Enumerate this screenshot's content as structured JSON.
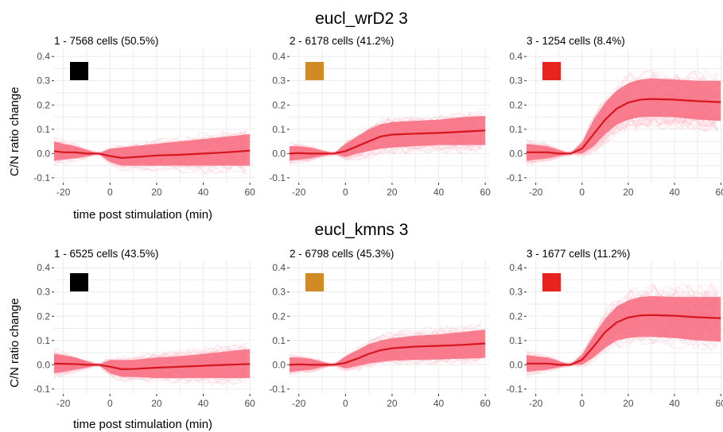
{
  "colors": {
    "line": "#d6161e",
    "band": "#f76a7d",
    "spaghetti": "#ffc6d2",
    "grid": "#ebebeb",
    "axis_text": "#4d4d4d"
  },
  "figure": {
    "titles": [
      "eucl_wrD2 3",
      "eucl_kmns 3"
    ],
    "xlabel": "time post stimulation (min)",
    "ylabel": "C/N ratio change"
  },
  "chart_data": [
    {
      "type": "line",
      "row": 0,
      "col": 0,
      "title": "1 - 7568 cells (50.5%)",
      "swatch": "#000000",
      "xlim": [
        -24,
        62
      ],
      "ylim": [
        -0.12,
        0.43
      ],
      "xticks": [
        -20,
        0,
        20,
        40,
        60
      ],
      "yticks": [
        -0.1,
        0.0,
        0.1,
        0.2,
        0.3,
        0.4
      ],
      "xlabel": "time post stimulation (min)",
      "ylabel": "C/N ratio change",
      "x": [
        -24,
        -20,
        -15,
        -10,
        -5,
        0,
        5,
        10,
        20,
        30,
        40,
        50,
        60
      ],
      "mean": [
        0.01,
        0.005,
        0.005,
        0.0,
        0.0,
        -0.01,
        -0.018,
        -0.015,
        -0.008,
        -0.005,
        0.0,
        0.005,
        0.012
      ],
      "lower": [
        -0.03,
        -0.025,
        -0.02,
        -0.012,
        0.0,
        -0.035,
        -0.05,
        -0.05,
        -0.05,
        -0.05,
        -0.05,
        -0.05,
        -0.05
      ],
      "upper": [
        0.05,
        0.04,
        0.03,
        0.015,
        0.0,
        0.02,
        0.025,
        0.03,
        0.04,
        0.05,
        0.06,
        0.07,
        0.08
      ]
    },
    {
      "type": "line",
      "row": 0,
      "col": 1,
      "title": "2 - 6178 cells (41.2%)",
      "swatch": "#d08a26",
      "xlim": [
        -24,
        62
      ],
      "ylim": [
        -0.12,
        0.43
      ],
      "xticks": [
        -20,
        0,
        20,
        40,
        60
      ],
      "yticks": [
        -0.1,
        0.0,
        0.1,
        0.2,
        0.3,
        0.4
      ],
      "xlabel": "",
      "ylabel": "",
      "x": [
        -24,
        -20,
        -15,
        -10,
        -5,
        0,
        5,
        10,
        15,
        20,
        30,
        40,
        50,
        60
      ],
      "mean": [
        0.0,
        0.002,
        0.0,
        0.0,
        0.0,
        0.01,
        0.03,
        0.05,
        0.07,
        0.078,
        0.082,
        0.085,
        0.09,
        0.095
      ],
      "lower": [
        -0.03,
        -0.025,
        -0.02,
        -0.01,
        0.0,
        -0.015,
        0.0,
        0.01,
        0.02,
        0.025,
        0.03,
        0.035,
        0.035,
        0.035
      ],
      "upper": [
        0.03,
        0.03,
        0.025,
        0.012,
        0.0,
        0.04,
        0.07,
        0.1,
        0.12,
        0.13,
        0.135,
        0.14,
        0.15,
        0.155
      ]
    },
    {
      "type": "line",
      "row": 0,
      "col": 2,
      "title": "3 - 1254 cells (8.4%)",
      "swatch": "#e8231f",
      "xlim": [
        -24,
        62
      ],
      "ylim": [
        -0.12,
        0.43
      ],
      "xticks": [
        -20,
        0,
        20,
        40,
        60
      ],
      "yticks": [
        -0.1,
        0.0,
        0.1,
        0.2,
        0.3,
        0.4
      ],
      "xlabel": "",
      "ylabel": "",
      "x": [
        -24,
        -20,
        -15,
        -10,
        -5,
        0,
        5,
        10,
        15,
        20,
        25,
        30,
        40,
        50,
        60
      ],
      "mean": [
        0.005,
        0.005,
        0.005,
        0.0,
        0.0,
        0.02,
        0.08,
        0.14,
        0.185,
        0.21,
        0.222,
        0.225,
        0.222,
        0.216,
        0.212
      ],
      "lower": [
        -0.03,
        -0.025,
        -0.02,
        -0.01,
        0.0,
        0.0,
        0.03,
        0.08,
        0.12,
        0.14,
        0.15,
        0.152,
        0.15,
        0.14,
        0.135
      ],
      "upper": [
        0.04,
        0.035,
        0.03,
        0.015,
        0.0,
        0.045,
        0.14,
        0.21,
        0.26,
        0.29,
        0.305,
        0.31,
        0.305,
        0.3,
        0.3
      ]
    },
    {
      "type": "line",
      "row": 1,
      "col": 0,
      "title": "1 - 6525 cells (43.5%)",
      "swatch": "#000000",
      "xlim": [
        -24,
        62
      ],
      "ylim": [
        -0.12,
        0.43
      ],
      "xticks": [
        -20,
        0,
        20,
        40,
        60
      ],
      "yticks": [
        -0.1,
        0.0,
        0.1,
        0.2,
        0.3,
        0.4
      ],
      "xlabel": "time post stimulation (min)",
      "ylabel": "C/N ratio change",
      "x": [
        -24,
        -20,
        -15,
        -10,
        -5,
        0,
        5,
        10,
        20,
        30,
        40,
        50,
        60
      ],
      "mean": [
        0.005,
        0.004,
        0.003,
        0.0,
        0.0,
        -0.008,
        -0.018,
        -0.017,
        -0.012,
        -0.008,
        -0.004,
        0.0,
        0.003
      ],
      "lower": [
        -0.035,
        -0.03,
        -0.02,
        -0.012,
        0.0,
        -0.035,
        -0.05,
        -0.05,
        -0.055,
        -0.055,
        -0.055,
        -0.055,
        -0.055
      ],
      "upper": [
        0.045,
        0.04,
        0.03,
        0.015,
        0.0,
        0.02,
        0.02,
        0.02,
        0.03,
        0.035,
        0.045,
        0.055,
        0.065
      ]
    },
    {
      "type": "line",
      "row": 1,
      "col": 1,
      "title": "2 - 6798 cells (45.3%)",
      "swatch": "#d08a26",
      "xlim": [
        -24,
        62
      ],
      "ylim": [
        -0.12,
        0.43
      ],
      "xticks": [
        -20,
        0,
        20,
        40,
        60
      ],
      "yticks": [
        -0.1,
        0.0,
        0.1,
        0.2,
        0.3,
        0.4
      ],
      "xlabel": "",
      "ylabel": "",
      "x": [
        -24,
        -20,
        -15,
        -10,
        -5,
        0,
        5,
        10,
        15,
        20,
        30,
        40,
        50,
        60
      ],
      "mean": [
        0.0,
        0.002,
        0.0,
        0.0,
        0.0,
        0.008,
        0.025,
        0.045,
        0.06,
        0.068,
        0.075,
        0.078,
        0.082,
        0.088
      ],
      "lower": [
        -0.03,
        -0.025,
        -0.02,
        -0.01,
        0.0,
        -0.015,
        -0.005,
        0.005,
        0.012,
        0.017,
        0.02,
        0.022,
        0.025,
        0.028
      ],
      "upper": [
        0.03,
        0.03,
        0.025,
        0.012,
        0.0,
        0.035,
        0.06,
        0.085,
        0.1,
        0.11,
        0.12,
        0.125,
        0.135,
        0.145
      ]
    },
    {
      "type": "line",
      "row": 1,
      "col": 2,
      "title": "3 - 1677 cells (11.2%)",
      "swatch": "#e8231f",
      "xlim": [
        -24,
        62
      ],
      "ylim": [
        -0.12,
        0.43
      ],
      "xticks": [
        -20,
        0,
        20,
        40,
        60
      ],
      "yticks": [
        -0.1,
        0.0,
        0.1,
        0.2,
        0.3,
        0.4
      ],
      "xlabel": "",
      "ylabel": "",
      "x": [
        -24,
        -20,
        -15,
        -10,
        -5,
        0,
        5,
        10,
        15,
        20,
        25,
        30,
        40,
        50,
        60
      ],
      "mean": [
        0.005,
        0.005,
        0.005,
        0.0,
        0.0,
        0.02,
        0.075,
        0.135,
        0.175,
        0.195,
        0.203,
        0.205,
        0.202,
        0.196,
        0.192
      ],
      "lower": [
        -0.03,
        -0.025,
        -0.02,
        -0.01,
        0.0,
        0.0,
        0.03,
        0.07,
        0.1,
        0.11,
        0.115,
        0.115,
        0.11,
        0.1,
        0.095
      ],
      "upper": [
        0.04,
        0.035,
        0.03,
        0.015,
        0.0,
        0.04,
        0.12,
        0.19,
        0.24,
        0.265,
        0.28,
        0.283,
        0.28,
        0.28,
        0.28
      ]
    }
  ]
}
